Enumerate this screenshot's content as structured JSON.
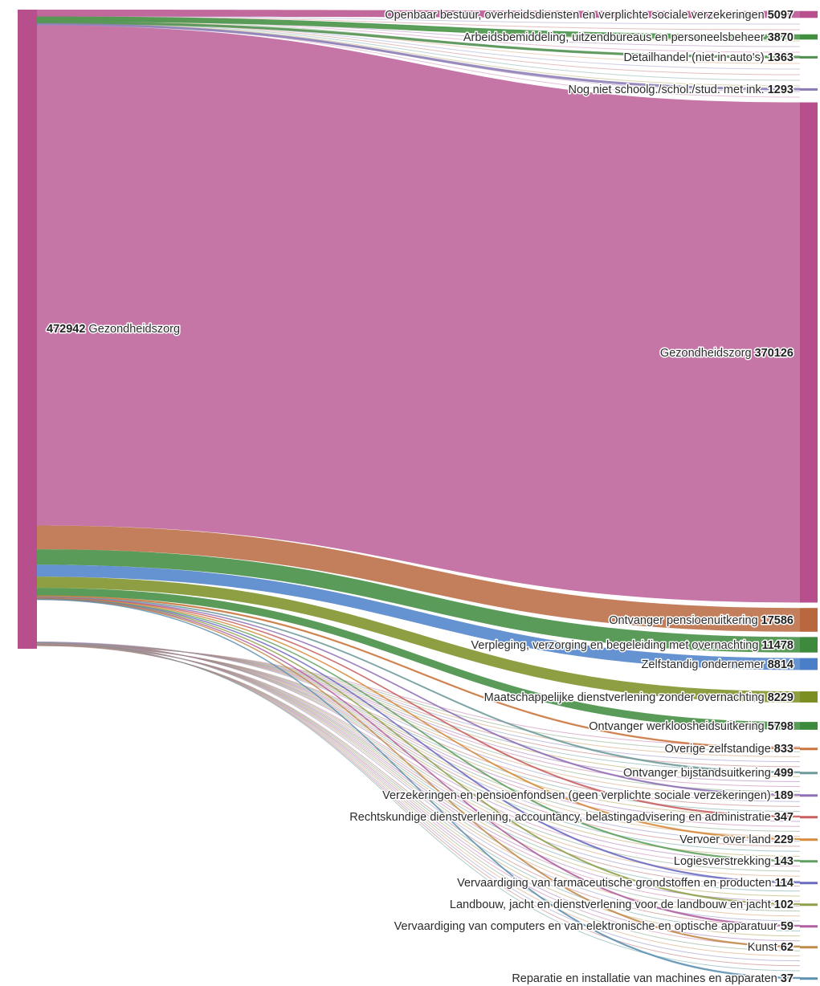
{
  "chart_data": {
    "type": "sankey",
    "source": {
      "name": "Gezondheidszorg",
      "value": 472942,
      "color": "#b64f8c"
    },
    "targets": [
      {
        "name": "Openbaar bestuur, overheidsdiensten en verplichte sociale verzekeringen",
        "value": 5097,
        "color": "#b64f8c"
      },
      {
        "name": "Arbeidsbemiddeling, uitzendbureaus en personeelsbeheer",
        "value": 3870,
        "color": "#3f8f3f"
      },
      {
        "name": "Detailhandel (niet in auto's)",
        "value": 1363,
        "color": "#4e8f4e"
      },
      {
        "name": "Nog niet schoolg./schol./stud. met ink.",
        "value": 1293,
        "color": "#8a7bb5"
      },
      {
        "name": "Gezondheidszorg",
        "value": 370126,
        "color": "#c576a6"
      },
      {
        "name": "Ontvanger pensioenuitkering",
        "value": 17586,
        "color": "#b8673e"
      },
      {
        "name": "Verpleging, verzorging en begeleiding met overnachting",
        "value": 11478,
        "color": "#3d8a3d"
      },
      {
        "name": "Zelfstandig ondernemer",
        "value": 8814,
        "color": "#4a7fc8"
      },
      {
        "name": "Maatschappelijke dienstverlening zonder overnachting",
        "value": 8229,
        "color": "#7a8e22"
      },
      {
        "name": "Ontvanger werkloosheidsuitkering",
        "value": 5798,
        "color": "#3d8a3d"
      },
      {
        "name": "Overige zelfstandige",
        "value": 833,
        "color": "#c9743a"
      },
      {
        "name": "Ontvanger bijstandsuitkering",
        "value": 499,
        "color": "#6f9a9a"
      },
      {
        "name": "Verzekeringen en pensioenfondsen (geen verplichte sociale verzekeringen)",
        "value": 189,
        "color": "#8f6fb5"
      },
      {
        "name": "Rechtskundige dienstverlening, accountancy, belastingadvisering en administratie",
        "value": 347,
        "color": "#c96060"
      },
      {
        "name": "Vervoer over land",
        "value": 229,
        "color": "#d68a3a"
      },
      {
        "name": "Logiesverstrekking",
        "value": 143,
        "color": "#5f9f5f"
      },
      {
        "name": "Vervaardiging van farmaceutische grondstoffen en producten",
        "value": 114,
        "color": "#6a6ac0"
      },
      {
        "name": "Landbouw, jacht en dienstverlening voor de landbouw en jacht",
        "value": 102,
        "color": "#8fa04a"
      },
      {
        "name": "Vervaardiging van computers en van elektronische en optische apparatuur",
        "value": 59,
        "color": "#b05fa0"
      },
      {
        "name": "Kunst",
        "value": 62,
        "color": "#c08a4a"
      },
      {
        "name": "Reparatie en installatie van machines en apparaten",
        "value": 37,
        "color": "#5a8fb0"
      }
    ]
  }
}
